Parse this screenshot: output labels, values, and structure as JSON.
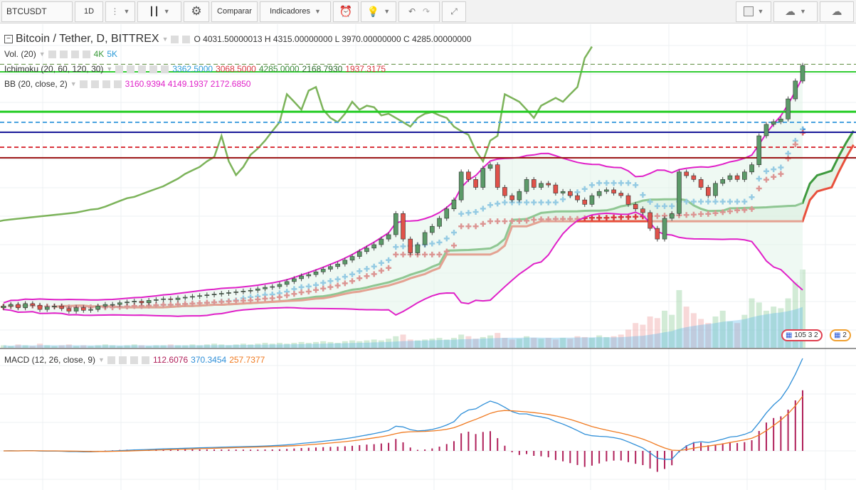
{
  "toolbar": {
    "symbol": "BTCUSDT",
    "interval": "1D",
    "compare": "Comparar",
    "indicators": "Indicadores"
  },
  "legend": {
    "title": "Bitcoin / Tether, D, BITTREX",
    "ohlc": "O 4031.50000013 H 4315.00000000 L 3970.00000000 C 4285.00000000",
    "vol_label": "Vol. (20)",
    "vol_v1": "4K",
    "vol_v2": "5K",
    "ichi_label": "Ichimoku (20, 60, 120, 30)",
    "ichi_v": [
      "3362.5000",
      "3068.5000",
      "4285.0000",
      "2168.7930",
      "1937.3175"
    ],
    "bb_label": "BB (20, close, 2)",
    "bb_v": "3160.9394 4149.1937 2172.6850",
    "macd_label": "MACD (12, 26, close, 9)",
    "macd_v": [
      "112.6076",
      "370.3454",
      "257.7377"
    ]
  },
  "badges": {
    "b1": "105 3 2",
    "b2": "2"
  },
  "colors": {
    "up": "#5b9a68",
    "down": "#e0524a",
    "bb": "#e020c8",
    "tenkan": "#4aa3df",
    "kijun": "#d9363e",
    "lag": "#7cb35a",
    "spanA": "#3e9a3e",
    "spanB": "#e8503c",
    "macd": "#2f8fd8",
    "signal": "#f07a20",
    "hist": "#b0205a"
  },
  "chart_data": {
    "type": "candlestick",
    "title": "Bitcoin / Tether, D, BITTREX",
    "closes": [
      1000,
      1010,
      990,
      1015,
      1005,
      980,
      995,
      1000,
      985,
      970,
      990,
      975,
      980,
      1000,
      1010,
      1010,
      1020,
      1025,
      1030,
      1020,
      1035,
      1040,
      1045,
      1040,
      1050,
      1055,
      1060,
      1065,
      1070,
      1075,
      1080,
      1085,
      1090,
      1095,
      1100,
      1110,
      1120,
      1125,
      1140,
      1160,
      1180,
      1200,
      1210,
      1230,
      1250,
      1270,
      1290,
      1320,
      1350,
      1390,
      1420,
      1450,
      1500,
      1540,
      1750,
      1500,
      1380,
      1450,
      1560,
      1620,
      1700,
      1800,
      1900,
      2250,
      2150,
      2050,
      2300,
      2350,
      2050,
      1950,
      1900,
      2000,
      2150,
      2050,
      2100,
      2080,
      1980,
      2000,
      1950,
      1900,
      1850,
      1950,
      2000,
      2020,
      1980,
      1950,
      1850,
      1800,
      1760,
      1600,
      1500,
      1700,
      1750,
      2250,
      2200,
      2150,
      2050,
      1950,
      2100,
      2150,
      2200,
      2150,
      2250,
      2350,
      2800,
      3000,
      3050,
      3100,
      3500,
      3900,
      4285
    ],
    "volumes": [
      3,
      2,
      4,
      3,
      2,
      5,
      3,
      2,
      3,
      4,
      2,
      3,
      2,
      3,
      4,
      3,
      2,
      3,
      4,
      3,
      2,
      3,
      3,
      4,
      3,
      3,
      4,
      3,
      4,
      5,
      4,
      3,
      4,
      5,
      4,
      5,
      6,
      5,
      6,
      5,
      6,
      7,
      6,
      7,
      8,
      7,
      6,
      8,
      9,
      8,
      9,
      10,
      9,
      11,
      14,
      16,
      10,
      9,
      10,
      11,
      12,
      10,
      12,
      16,
      14,
      11,
      13,
      15,
      18,
      12,
      10,
      11,
      14,
      12,
      11,
      12,
      10,
      12,
      11,
      14,
      13,
      12,
      15,
      13,
      14,
      16,
      22,
      30,
      28,
      38,
      36,
      45,
      40,
      70,
      50,
      42,
      35,
      30,
      38,
      45,
      32,
      30,
      40,
      60,
      55,
      45,
      50,
      48,
      60,
      80,
      95
    ],
    "levels": [
      {
        "price": 4122,
        "color": "#33cc33",
        "style": "solid",
        "w": 2
      },
      {
        "price": 3239,
        "color": "#22cc22",
        "style": "solid",
        "w": 3
      },
      {
        "price": 3038,
        "color": "#4aa3df",
        "style": "dashed",
        "w": 2
      },
      {
        "price": 2860,
        "color": "#1a1a9a",
        "style": "solid",
        "w": 2
      },
      {
        "price": 2614,
        "color": "#d9363e",
        "style": "dashed",
        "w": 2
      },
      {
        "price": 2452,
        "color": "#9a1010",
        "style": "solid",
        "w": 2
      },
      {
        "price": 4315,
        "color": "#5a8a3a",
        "style": "dashed",
        "w": 1
      }
    ]
  }
}
